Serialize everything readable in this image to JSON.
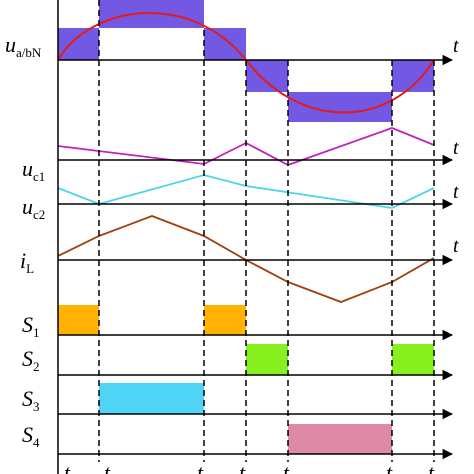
{
  "axis_label": "t",
  "colors": {
    "axis": "#000000",
    "sine": "#e31b1b",
    "step_fill": "#6a4fe0",
    "uc1": "#c022c0",
    "uc2": "#4fd4ea",
    "iL": "#a0400e",
    "S1": "#ffb300",
    "S2": "#88f01e",
    "S3": "#4fd4f6",
    "S4": "#de8aa6"
  },
  "signals": [
    {
      "id": "uab",
      "main": "u",
      "sub": "a/bN"
    },
    {
      "id": "uc1",
      "main": "u",
      "sub": "c1"
    },
    {
      "id": "uc2",
      "main": "u",
      "sub": "c2"
    },
    {
      "id": "iL",
      "main": "i",
      "sub": "L"
    },
    {
      "id": "S1",
      "main": "S",
      "sub": "1"
    },
    {
      "id": "S2",
      "main": "S",
      "sub": "2"
    },
    {
      "id": "S3",
      "main": "S",
      "sub": "3"
    },
    {
      "id": "S4",
      "main": "S",
      "sub": "4"
    }
  ],
  "time_instant_label": "t",
  "time_instants_shown": 10,
  "switches": {
    "S1": [
      [
        0,
        1
      ],
      [
        3.5,
        4.5
      ]
    ],
    "S2": [
      [
        4.5,
        5.5
      ],
      [
        8.5,
        9.5
      ]
    ],
    "S3": [
      [
        1,
        3.5
      ]
    ],
    "S4": [
      [
        5.5,
        8.5
      ]
    ]
  }
}
